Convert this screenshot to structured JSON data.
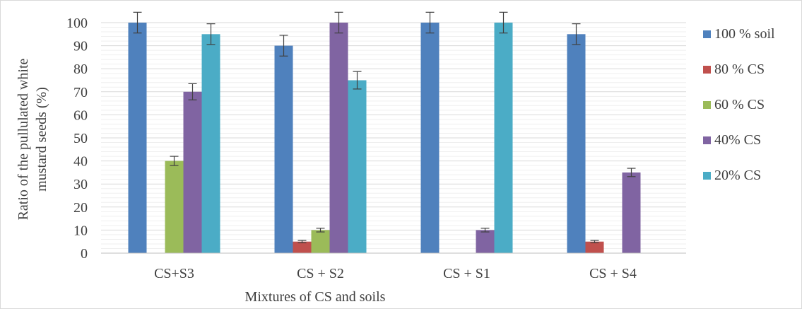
{
  "chart_data": {
    "type": "bar",
    "title": "",
    "xlabel": "Mixtures of CS and soils",
    "ylabel_lines": [
      "Ratio of the pullulated white",
      "mustard seeds (%)"
    ],
    "ylim": [
      0,
      100
    ],
    "yticks": [
      0,
      10,
      20,
      30,
      40,
      50,
      60,
      70,
      80,
      90,
      100
    ],
    "grid": true,
    "legend_position": "right",
    "categories": [
      "CS+S3",
      "CS + S2",
      "CS + S1",
      "CS + S4"
    ],
    "series": [
      {
        "name": "100 % soil",
        "color": "#4f81bd",
        "values": [
          100,
          90,
          100,
          95
        ],
        "errors": [
          4.5,
          4.5,
          4.5,
          4.5
        ]
      },
      {
        "name": "80 % CS",
        "color": "#c0504d",
        "values": [
          0,
          5,
          0,
          5
        ],
        "errors": [
          0,
          0.5,
          0,
          0.5
        ]
      },
      {
        "name": "60 % CS",
        "color": "#9bbb59",
        "values": [
          0,
          10,
          0,
          0
        ],
        "errors": [
          0,
          0.8,
          0,
          0
        ],
        "extra": [
          40
        ]
      },
      {
        "name": "40% CS",
        "color": "#8064a2",
        "values": [
          70,
          100,
          10,
          35
        ],
        "errors": [
          3.5,
          4.5,
          0.8,
          1.8
        ]
      },
      {
        "name": "20% CS",
        "color": "#4bacc6",
        "values": [
          95,
          75,
          100,
          0
        ],
        "errors": [
          4.5,
          3.8,
          4.5,
          0
        ]
      }
    ]
  }
}
